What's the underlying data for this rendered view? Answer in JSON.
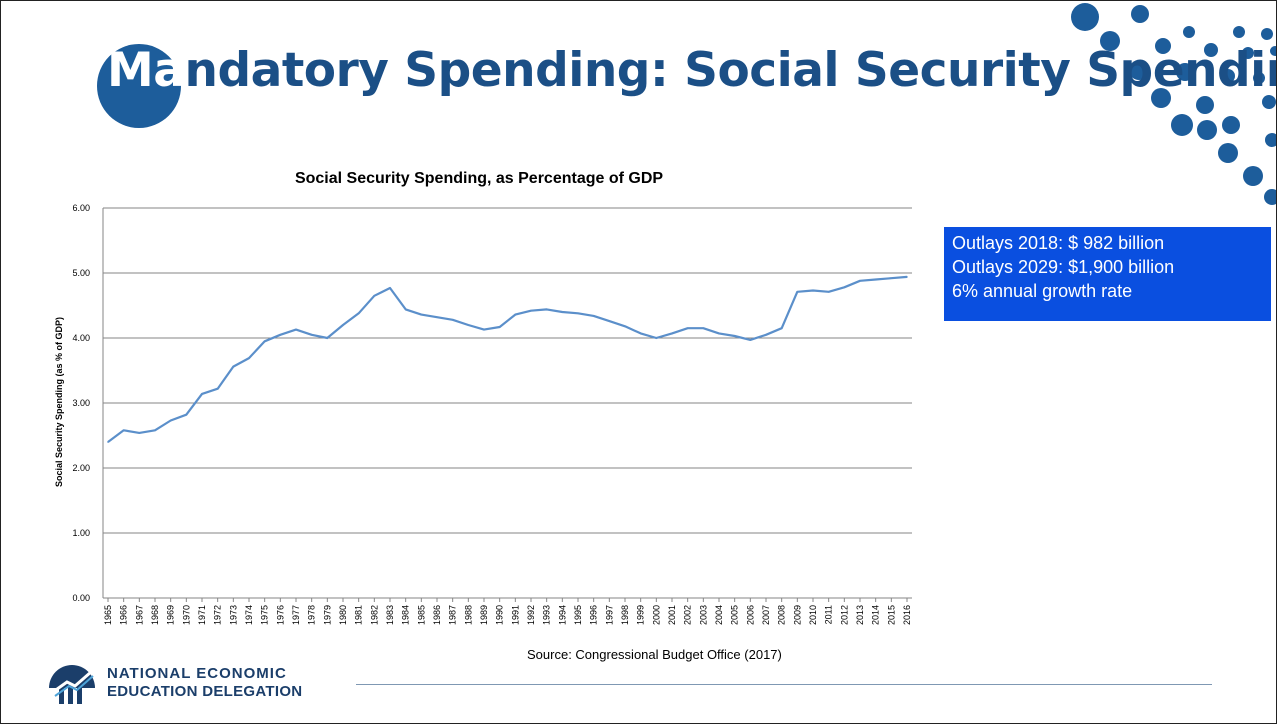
{
  "slide": {
    "title_first": "Ma",
    "title_rest": "ndatory Spending: Social Security Spending",
    "info_box": {
      "lines": [
        "Outlays 2018: $  982 billion",
        "Outlays 2029: $1,900 billion",
        "6% annual growth rate"
      ]
    },
    "source": "Source: Congressional Budget Office (2017)",
    "org": {
      "line1": "NATIONAL ECONOMIC",
      "line2": "EDUCATION DELEGATION"
    },
    "colors": {
      "accent": "#1d5d9b",
      "title": "#1b4f86",
      "info_box": "#0a4fe0",
      "series": "#5b8fca"
    }
  },
  "chart_data": {
    "type": "line",
    "title": "Social Security Spending, as Percentage of GDP",
    "xlabel": "",
    "ylabel": "Social Security Spending (as % of GDP)",
    "ylim": [
      0,
      6
    ],
    "yticks": [
      "0.00",
      "1.00",
      "2.00",
      "3.00",
      "4.00",
      "5.00",
      "6.00"
    ],
    "grid": true,
    "x": [
      "1965",
      "1966",
      "1967",
      "1968",
      "1969",
      "1970",
      "1971",
      "1972",
      "1973",
      "1974",
      "1975",
      "1976",
      "1977",
      "1978",
      "1979",
      "1980",
      "1981",
      "1982",
      "1983",
      "1984",
      "1985",
      "1986",
      "1987",
      "1988",
      "1989",
      "1990",
      "1991",
      "1992",
      "1993",
      "1994",
      "1995",
      "1996",
      "1997",
      "1998",
      "1999",
      "2000",
      "2001",
      "2002",
      "2003",
      "2004",
      "2005",
      "2006",
      "2007",
      "2008",
      "2009",
      "2010",
      "2011",
      "2012",
      "2013",
      "2014",
      "2015",
      "2016"
    ],
    "values": [
      2.4,
      2.58,
      2.54,
      2.58,
      2.73,
      2.82,
      3.14,
      3.22,
      3.56,
      3.69,
      3.95,
      4.05,
      4.13,
      4.05,
      4.0,
      4.2,
      4.38,
      4.65,
      4.77,
      4.44,
      4.36,
      4.32,
      4.28,
      4.2,
      4.13,
      4.17,
      4.36,
      4.42,
      4.44,
      4.4,
      4.38,
      4.34,
      4.26,
      4.18,
      4.07,
      4.0,
      4.07,
      4.15,
      4.15,
      4.07,
      4.03,
      3.97,
      4.05,
      4.15,
      4.71,
      4.73,
      4.71,
      4.78,
      4.88,
      4.9,
      4.92,
      4.94
    ]
  }
}
